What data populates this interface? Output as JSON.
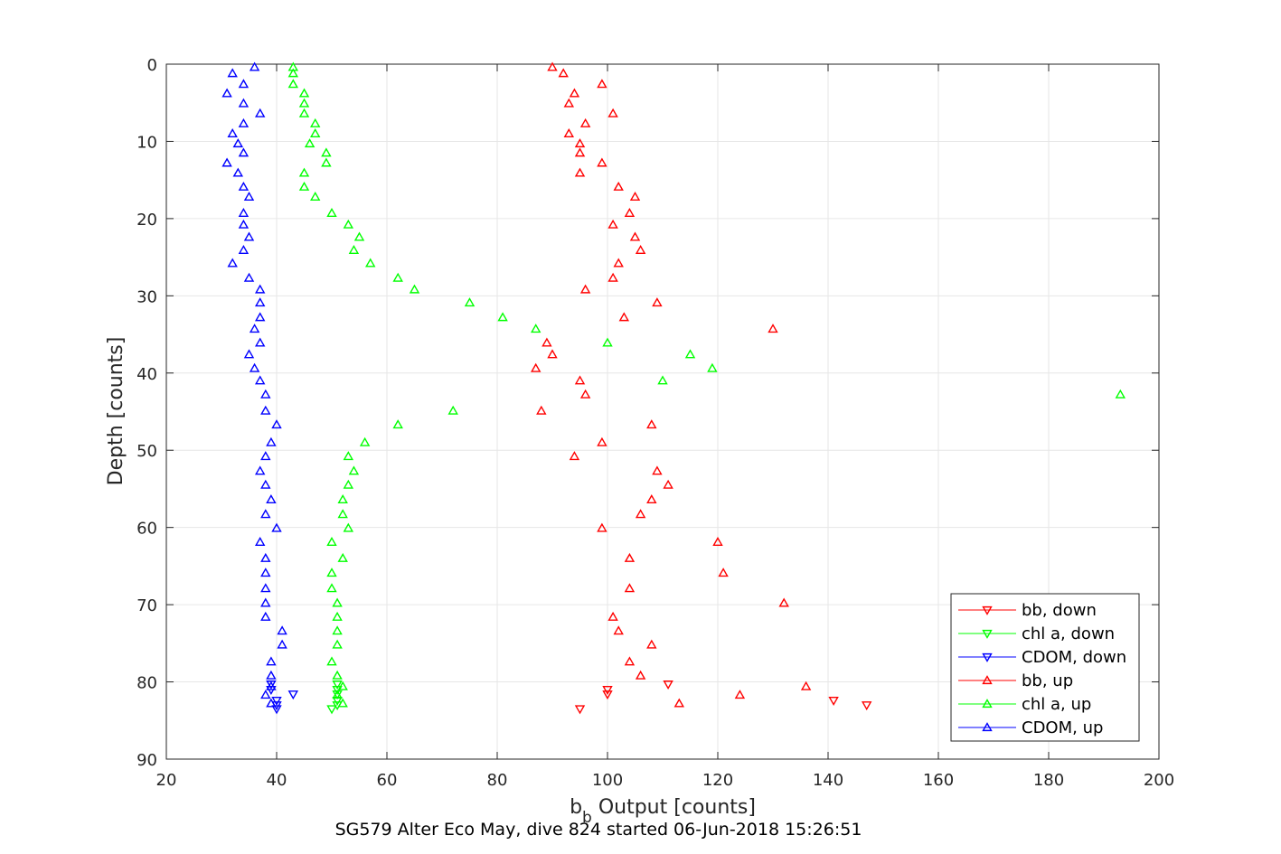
{
  "chart_data": {
    "type": "scatter",
    "xlabel": "b_b Output [counts]",
    "xlabel_main": "b",
    "xlabel_sub": "b",
    "xlabel_rest": " Output [counts]",
    "ylabel": "Depth [counts]",
    "caption": "SG579 Alter Eco May, dive 824 started 06-Jun-2018 15:26:51",
    "xlim": [
      20,
      200
    ],
    "ylim": [
      0,
      90
    ],
    "y_reversed": true,
    "grid": true,
    "legend_position": "bottom-right",
    "x_ticks": [
      "20",
      "40",
      "60",
      "80",
      "100",
      "120",
      "140",
      "160",
      "180",
      "200"
    ],
    "y_ticks": [
      "0",
      "10",
      "20",
      "30",
      "40",
      "50",
      "60",
      "70",
      "80",
      "90"
    ],
    "series": [
      {
        "name": "bb, down",
        "color": "#ff0000",
        "marker": "triangle-down",
        "points": [
          [
            111,
            80.3
          ],
          [
            100,
            81.0
          ],
          [
            100,
            81.6
          ],
          [
            141,
            82.4
          ],
          [
            147,
            83.0
          ],
          [
            95,
            83.5
          ]
        ]
      },
      {
        "name": "chl a, down",
        "color": "#00ff00",
        "marker": "triangle-down",
        "points": [
          [
            51,
            80.3
          ],
          [
            51,
            81.0
          ],
          [
            51,
            81.6
          ],
          [
            51,
            82.4
          ],
          [
            51,
            83.0
          ],
          [
            50,
            83.5
          ]
        ]
      },
      {
        "name": "CDOM, down",
        "color": "#0000ff",
        "marker": "triangle-down",
        "points": [
          [
            39,
            80.3
          ],
          [
            39,
            81.0
          ],
          [
            43,
            81.6
          ],
          [
            40,
            82.4
          ],
          [
            40,
            83.0
          ],
          [
            40,
            83.5
          ]
        ]
      },
      {
        "name": "bb, up",
        "color": "#ff0000",
        "marker": "triangle-up",
        "points": [
          [
            90,
            0.4
          ],
          [
            92,
            1.2
          ],
          [
            99,
            2.6
          ],
          [
            94,
            3.8
          ],
          [
            93,
            5.1
          ],
          [
            101,
            6.4
          ],
          [
            96,
            7.7
          ],
          [
            93,
            9.0
          ],
          [
            95,
            10.3
          ],
          [
            95,
            11.5
          ],
          [
            99,
            12.8
          ],
          [
            95,
            14.1
          ],
          [
            102,
            15.9
          ],
          [
            105,
            17.2
          ],
          [
            104,
            19.3
          ],
          [
            101,
            20.8
          ],
          [
            105,
            22.4
          ],
          [
            106,
            24.1
          ],
          [
            102,
            25.8
          ],
          [
            101,
            27.7
          ],
          [
            96,
            29.2
          ],
          [
            109,
            30.9
          ],
          [
            103,
            32.8
          ],
          [
            130,
            34.3
          ],
          [
            89,
            36.1
          ],
          [
            90,
            37.6
          ],
          [
            87,
            39.4
          ],
          [
            95,
            41.0
          ],
          [
            96,
            42.8
          ],
          [
            88,
            44.9
          ],
          [
            108,
            46.7
          ],
          [
            99,
            49.0
          ],
          [
            94,
            50.8
          ],
          [
            109,
            52.7
          ],
          [
            111,
            54.5
          ],
          [
            108,
            56.4
          ],
          [
            106,
            58.3
          ],
          [
            99,
            60.1
          ],
          [
            120,
            61.9
          ],
          [
            104,
            64.0
          ],
          [
            121,
            65.9
          ],
          [
            104,
            67.9
          ],
          [
            132,
            69.8
          ],
          [
            101,
            71.6
          ],
          [
            102,
            73.4
          ],
          [
            108,
            75.2
          ],
          [
            104,
            77.4
          ],
          [
            106,
            79.2
          ],
          [
            136,
            80.6
          ],
          [
            124,
            81.7
          ],
          [
            113,
            82.8
          ]
        ]
      },
      {
        "name": "chl a, up",
        "color": "#00ff00",
        "marker": "triangle-up",
        "points": [
          [
            43,
            0.4
          ],
          [
            43,
            1.2
          ],
          [
            43,
            2.6
          ],
          [
            45,
            3.8
          ],
          [
            45,
            5.1
          ],
          [
            45,
            6.4
          ],
          [
            47,
            7.7
          ],
          [
            47,
            9.0
          ],
          [
            46,
            10.3
          ],
          [
            49,
            11.5
          ],
          [
            49,
            12.8
          ],
          [
            45,
            14.1
          ],
          [
            45,
            15.9
          ],
          [
            47,
            17.2
          ],
          [
            50,
            19.3
          ],
          [
            53,
            20.8
          ],
          [
            55,
            22.4
          ],
          [
            54,
            24.1
          ],
          [
            57,
            25.8
          ],
          [
            62,
            27.7
          ],
          [
            65,
            29.2
          ],
          [
            75,
            30.9
          ],
          [
            81,
            32.8
          ],
          [
            87,
            34.3
          ],
          [
            100,
            36.1
          ],
          [
            115,
            37.6
          ],
          [
            119,
            39.4
          ],
          [
            110,
            41.0
          ],
          [
            193,
            42.8
          ],
          [
            72,
            44.9
          ],
          [
            62,
            46.7
          ],
          [
            56,
            49.0
          ],
          [
            53,
            50.8
          ],
          [
            54,
            52.7
          ],
          [
            53,
            54.5
          ],
          [
            52,
            56.4
          ],
          [
            52,
            58.3
          ],
          [
            53,
            60.1
          ],
          [
            50,
            61.9
          ],
          [
            52,
            64.0
          ],
          [
            50,
            65.9
          ],
          [
            50,
            67.9
          ],
          [
            51,
            69.8
          ],
          [
            51,
            71.6
          ],
          [
            51,
            73.4
          ],
          [
            51,
            75.2
          ],
          [
            50,
            77.4
          ],
          [
            51,
            79.2
          ],
          [
            52,
            80.6
          ],
          [
            51,
            81.7
          ],
          [
            52,
            82.8
          ]
        ]
      },
      {
        "name": "CDOM, up",
        "color": "#0000ff",
        "marker": "triangle-up",
        "points": [
          [
            36,
            0.4
          ],
          [
            32,
            1.2
          ],
          [
            34,
            2.6
          ],
          [
            31,
            3.8
          ],
          [
            34,
            5.1
          ],
          [
            37,
            6.4
          ],
          [
            34,
            7.7
          ],
          [
            32,
            9.0
          ],
          [
            33,
            10.3
          ],
          [
            34,
            11.5
          ],
          [
            31,
            12.8
          ],
          [
            33,
            14.1
          ],
          [
            34,
            15.9
          ],
          [
            35,
            17.2
          ],
          [
            34,
            19.3
          ],
          [
            34,
            20.8
          ],
          [
            35,
            22.4
          ],
          [
            34,
            24.1
          ],
          [
            32,
            25.8
          ],
          [
            35,
            27.7
          ],
          [
            37,
            29.2
          ],
          [
            37,
            30.9
          ],
          [
            37,
            32.8
          ],
          [
            36,
            34.3
          ],
          [
            37,
            36.1
          ],
          [
            35,
            37.6
          ],
          [
            36,
            39.4
          ],
          [
            37,
            41.0
          ],
          [
            38,
            42.8
          ],
          [
            38,
            44.9
          ],
          [
            40,
            46.7
          ],
          [
            39,
            49.0
          ],
          [
            38,
            50.8
          ],
          [
            37,
            52.7
          ],
          [
            38,
            54.5
          ],
          [
            39,
            56.4
          ],
          [
            38,
            58.3
          ],
          [
            40,
            60.1
          ],
          [
            37,
            61.9
          ],
          [
            38,
            64.0
          ],
          [
            38,
            65.9
          ],
          [
            38,
            67.9
          ],
          [
            38,
            69.8
          ],
          [
            38,
            71.6
          ],
          [
            41,
            73.4
          ],
          [
            41,
            75.2
          ],
          [
            39,
            77.4
          ],
          [
            39,
            79.2
          ],
          [
            39,
            80.6
          ],
          [
            38,
            81.7
          ],
          [
            39,
            82.8
          ]
        ]
      }
    ]
  }
}
